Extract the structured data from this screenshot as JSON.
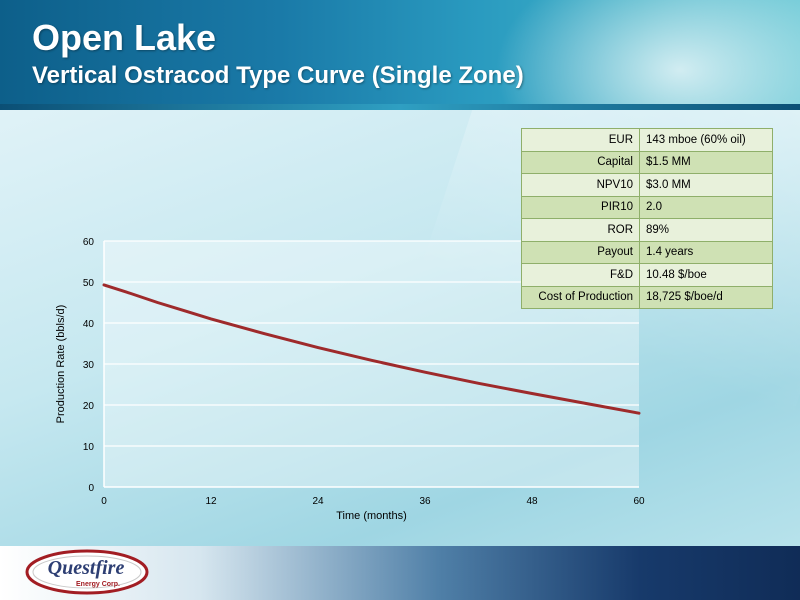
{
  "header": {
    "title": "Open Lake",
    "subtitle": "Vertical Ostracod Type Curve (Single Zone)"
  },
  "metrics": [
    {
      "label": "EUR",
      "value": "143 mboe (60% oil)"
    },
    {
      "label": "Capital",
      "value": "$1.5 MM"
    },
    {
      "label": "NPV10",
      "value": "$3.0 MM"
    },
    {
      "label": "PIR10",
      "value": "2.0"
    },
    {
      "label": "ROR",
      "value": "89%"
    },
    {
      "label": "Payout",
      "value": "1.4 years"
    },
    {
      "label": "F&D",
      "value": "10.48 $/boe"
    },
    {
      "label": "Cost of Production",
      "value": "18,725 $/boe/d"
    }
  ],
  "logo": {
    "name": "Questfire",
    "tagline": "Energy Corp."
  },
  "colors": {
    "series": "#9e2a2b",
    "header": "#1a7aa8"
  },
  "chart_data": {
    "type": "line",
    "xlabel": "Time (months)",
    "ylabel": "Production Rate (bbls/d)",
    "xlim": [
      0,
      60
    ],
    "ylim": [
      0,
      60
    ],
    "xticks": [
      0,
      12,
      24,
      36,
      48,
      60
    ],
    "yticks": [
      0,
      10,
      20,
      30,
      40,
      50,
      60
    ],
    "grid": "horizontal",
    "series": [
      {
        "x": [
          0,
          3,
          6,
          9,
          12,
          18,
          24,
          30,
          36,
          42,
          48,
          54,
          60
        ],
        "y": [
          49.3,
          47.2,
          45.0,
          43.0,
          41.0,
          37.4,
          34.0,
          30.9,
          28.0,
          25.3,
          22.8,
          20.4,
          18.0
        ]
      }
    ]
  }
}
